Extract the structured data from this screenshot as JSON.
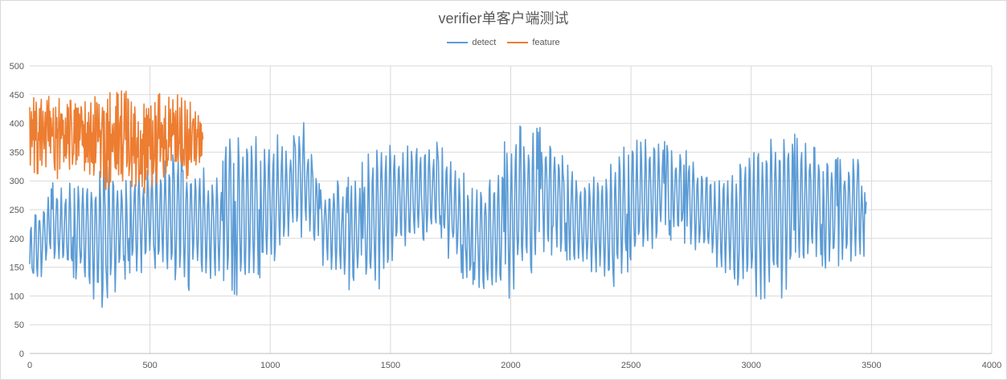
{
  "chart_data": {
    "type": "line",
    "title": "verifier单客户端测试",
    "xlabel": "",
    "ylabel": "",
    "xlim": [
      0,
      4000
    ],
    "ylim": [
      0,
      500
    ],
    "x_ticks": [
      "0",
      "500",
      "1000",
      "1500",
      "2000",
      "2500",
      "3000",
      "3500",
      "4000"
    ],
    "y_ticks": [
      "0",
      "50",
      "100",
      "150",
      "200",
      "250",
      "300",
      "350",
      "400",
      "450",
      "500"
    ],
    "grid": true,
    "legend_position": "top",
    "series": [
      {
        "name": "detect",
        "color": "#5b9bd5",
        "x_range": [
          0,
          3480
        ],
        "cycle_starts": [
          0,
          650,
          1150,
          1650,
          2150,
          2650,
          3150
        ],
        "envelope": [
          {
            "x": 0,
            "low": 105,
            "high": 230
          },
          {
            "x": 100,
            "low": 150,
            "high": 300
          },
          {
            "x": 200,
            "low": 120,
            "high": 310
          },
          {
            "x": 300,
            "low": 75,
            "high": 330
          },
          {
            "x": 400,
            "low": 130,
            "high": 320
          },
          {
            "x": 500,
            "low": 150,
            "high": 325
          },
          {
            "x": 650,
            "low": 110,
            "high": 360
          },
          {
            "x": 700,
            "low": 130,
            "high": 330
          },
          {
            "x": 800,
            "low": 110,
            "high": 330
          },
          {
            "x": 830,
            "low": 95,
            "high": 420
          },
          {
            "x": 900,
            "low": 100,
            "high": 380
          },
          {
            "x": 1000,
            "low": 150,
            "high": 375
          },
          {
            "x": 1100,
            "low": 200,
            "high": 380
          },
          {
            "x": 1140,
            "low": 210,
            "high": 410
          },
          {
            "x": 1200,
            "low": 170,
            "high": 300
          },
          {
            "x": 1300,
            "low": 110,
            "high": 300
          },
          {
            "x": 1400,
            "low": 95,
            "high": 340
          },
          {
            "x": 1450,
            "low": 110,
            "high": 385
          },
          {
            "x": 1500,
            "low": 150,
            "high": 375
          },
          {
            "x": 1600,
            "low": 190,
            "high": 360
          },
          {
            "x": 1700,
            "low": 200,
            "high": 370
          },
          {
            "x": 1800,
            "low": 130,
            "high": 310
          },
          {
            "x": 1900,
            "low": 100,
            "high": 290
          },
          {
            "x": 1980,
            "low": 85,
            "high": 380
          },
          {
            "x": 2050,
            "low": 120,
            "high": 400
          },
          {
            "x": 2150,
            "low": 175,
            "high": 390
          },
          {
            "x": 2300,
            "low": 140,
            "high": 300
          },
          {
            "x": 2400,
            "low": 95,
            "high": 340
          },
          {
            "x": 2500,
            "low": 140,
            "high": 385
          },
          {
            "x": 2600,
            "low": 185,
            "high": 380
          },
          {
            "x": 2700,
            "low": 195,
            "high": 370
          },
          {
            "x": 2850,
            "low": 150,
            "high": 300
          },
          {
            "x": 2950,
            "low": 110,
            "high": 335
          },
          {
            "x": 3020,
            "low": 88,
            "high": 385
          },
          {
            "x": 3130,
            "low": 95,
            "high": 400
          },
          {
            "x": 3250,
            "low": 160,
            "high": 370
          },
          {
            "x": 3350,
            "low": 140,
            "high": 340
          },
          {
            "x": 3430,
            "low": 150,
            "high": 360
          },
          {
            "x": 3480,
            "low": 150,
            "high": 270
          }
        ]
      },
      {
        "name": "feature",
        "color": "#ed7d31",
        "x_range": [
          0,
          720
        ],
        "envelope": [
          {
            "x": 0,
            "low": 270,
            "high": 455
          },
          {
            "x": 100,
            "low": 300,
            "high": 445
          },
          {
            "x": 200,
            "low": 310,
            "high": 440
          },
          {
            "x": 300,
            "low": 280,
            "high": 450
          },
          {
            "x": 400,
            "low": 300,
            "high": 465
          },
          {
            "x": 450,
            "low": 270,
            "high": 430
          },
          {
            "x": 550,
            "low": 300,
            "high": 455
          },
          {
            "x": 650,
            "low": 300,
            "high": 450
          },
          {
            "x": 720,
            "low": 330,
            "high": 400
          }
        ]
      }
    ]
  }
}
